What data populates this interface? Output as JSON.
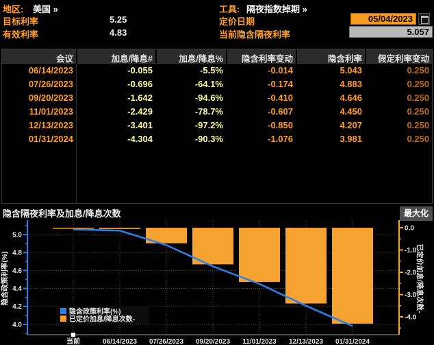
{
  "header": {
    "region_label": "地区:",
    "region_value": "美国 »",
    "tool_label": "工具:",
    "tool_value": "隔夜指数掉期 »",
    "target_rate_label": "目标利率",
    "target_rate_value": "5.25",
    "effective_rate_label": "有效利率",
    "effective_rate_value": "4.83",
    "pricing_date_label": "定价日期",
    "pricing_date_value": "05/04/2023",
    "current_implied_label": "当前隐含隔夜利率",
    "current_implied_value": "5.057"
  },
  "table": {
    "headers": [
      "会议",
      "加息/降息#",
      "加息/降息%",
      "隐含利率变动",
      "隐含利率",
      "假定利率变动"
    ],
    "rows": [
      [
        "06/14/2023",
        "-0.055",
        "-5.5%",
        "-0.014",
        "5.043",
        "0.250"
      ],
      [
        "07/26/2023",
        "-0.696",
        "-64.1%",
        "-0.174",
        "4.883",
        "0.250"
      ],
      [
        "09/20/2023",
        "-1.642",
        "-94.6%",
        "-0.410",
        "4.646",
        "0.250"
      ],
      [
        "11/01/2023",
        "-2.429",
        "-78.7%",
        "-0.607",
        "4.450",
        "0.250"
      ],
      [
        "12/13/2023",
        "-3.401",
        "-97.2%",
        "-0.850",
        "4.207",
        "0.250"
      ],
      [
        "01/31/2024",
        "-4.304",
        "-90.3%",
        "-1.076",
        "3.981",
        "0.250"
      ]
    ]
  },
  "chart": {
    "title": "隐含隔夜利率及加息/降息次数",
    "maximize_label": "最大化"
  },
  "chart_data": {
    "type": "bar",
    "subtype": "dual-axis line + hanging bars",
    "title": "隐含隔夜利率及加息/降息次数",
    "categories": [
      "当前",
      "06/14/2023",
      "07/26/2023",
      "09/20/2023",
      "11/01/2023",
      "12/13/2023",
      "01/31/2024"
    ],
    "series": [
      {
        "name": "隐含政策利率(%)",
        "type": "line",
        "axis": "left",
        "values": [
          5.057,
          5.043,
          4.883,
          4.646,
          4.45,
          4.207,
          3.981
        ]
      },
      {
        "name": "已定价加息/降息次数-",
        "type": "bar",
        "axis": "right",
        "values": [
          0,
          -0.055,
          -0.696,
          -1.642,
          -2.429,
          -3.401,
          -4.304
        ]
      }
    ],
    "left_axis": {
      "label": "隐含政策利率(%)",
      "min": 3.885,
      "max": 5.16,
      "ticks": [
        5.0,
        4.8,
        4.6,
        4.4,
        4.2,
        4.0
      ],
      "tick_labels": [
        "5.0",
        "4.8",
        "4.6",
        "4.4",
        "4.2",
        "4.0"
      ]
    },
    "right_axis": {
      "label": "已定价加息/降息次数-",
      "min": -4.8,
      "max": 0.34,
      "ticks": [
        0,
        -1,
        -2,
        -3,
        -4
      ],
      "tick_labels": [
        "0.0",
        "-1.0",
        "-2.0",
        "-3.0",
        "-4.0"
      ]
    },
    "legend": [
      "隐含政策利率(%)",
      "已定价加息/降息次数-"
    ],
    "legend_position": "bottom-left-inside",
    "grid": "dotted"
  },
  "colors": {
    "amber": "#ff9e24",
    "pale_yellow": "#ffffa6",
    "dim_amber": "#bd6e12",
    "line_blue": "#2e80e8",
    "bar_orange": "#f6a231",
    "axis_grey": "#9a9a9a",
    "grid_grey": "#4a4a4a",
    "text_white": "#e8e8e8",
    "input_orange": "#f79b21",
    "readonly_grey": "#b9b9b9"
  }
}
